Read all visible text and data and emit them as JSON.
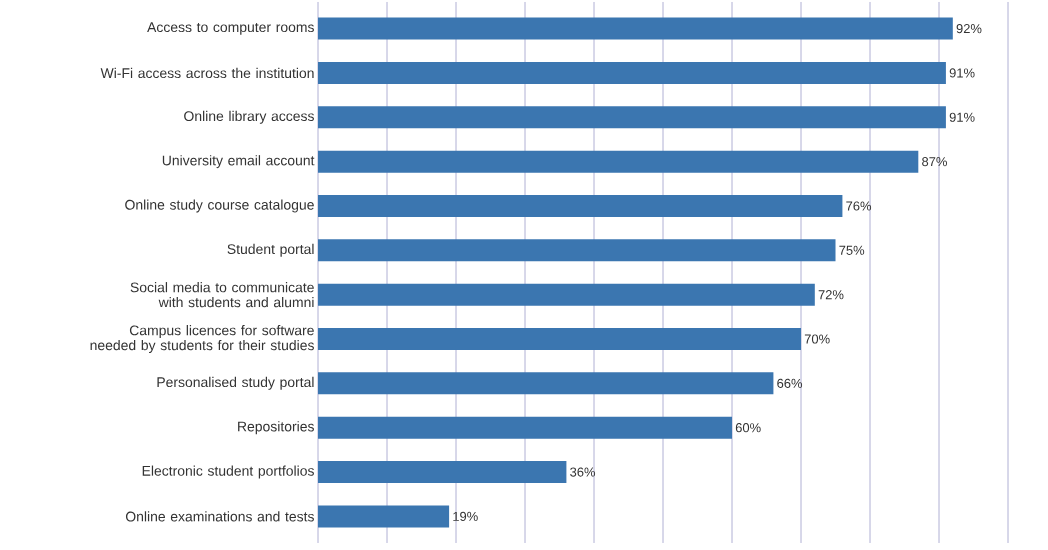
{
  "chart_data": {
    "type": "bar",
    "orientation": "horizontal",
    "categories": [
      "Access to computer rooms",
      "Wi-Fi access across the institution",
      "Online library access",
      "University email account",
      "Online study course catalogue",
      "Student portal",
      "Social media to communicate with students and alumni",
      "Campus licences for software needed by students for their studies",
      "Personalised study portal",
      "Repositories",
      "Electronic student portfolios",
      "Online examinations and tests"
    ],
    "values": [
      92,
      91,
      91,
      87,
      76,
      75,
      72,
      70,
      66,
      60,
      36,
      19
    ],
    "color": "#3b76b0",
    "data_labels": true,
    "value_labels": [
      "92%",
      "91%",
      "91%",
      "87%",
      "76%",
      "75%",
      "72%",
      "70%",
      "66%",
      "60%",
      "36%",
      "19%"
    ],
    "xlim": [
      0,
      100
    ],
    "xticks": [
      {
        "value": 0,
        "label": null
      },
      {
        "value": 10,
        "label": null
      },
      {
        "value": 20,
        "label": null
      },
      {
        "value": 30,
        "label": null
      },
      {
        "value": 40,
        "label": null
      },
      {
        "value": 50,
        "label": null
      },
      {
        "value": 60,
        "label": null
      },
      {
        "value": 70,
        "label": null
      },
      {
        "value": 80,
        "label": null
      },
      {
        "value": 90,
        "label": null
      },
      {
        "value": 100,
        "label": null
      }
    ],
    "grid": "x",
    "tick_labels": "y"
  }
}
